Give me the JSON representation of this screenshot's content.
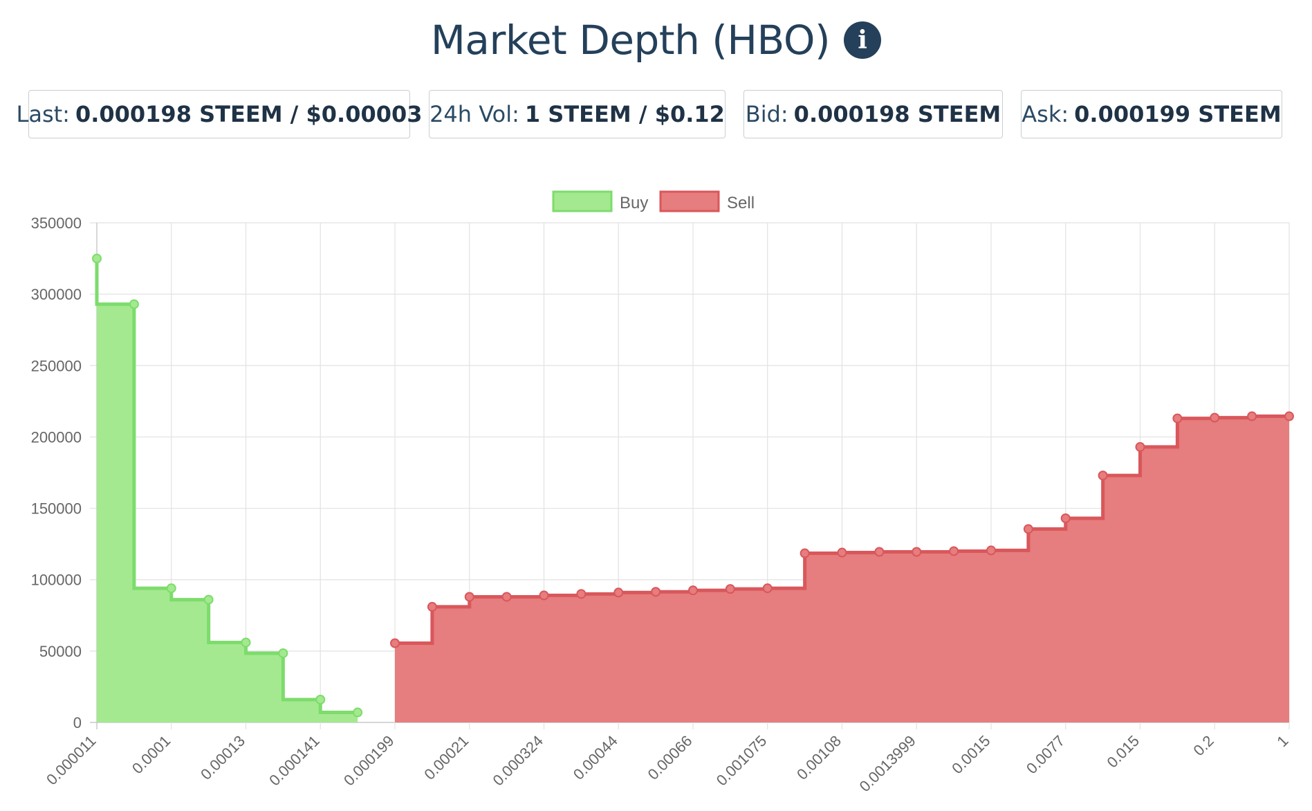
{
  "header": {
    "title": "Market Depth (HBO)",
    "info_icon": "info-icon"
  },
  "stats": [
    {
      "label": "Last:",
      "value": "0.000198 STEEM / $0.00003"
    },
    {
      "label": "24h Vol:",
      "value": "1 STEEM / $0.12"
    },
    {
      "label": "Bid:",
      "value": "0.000198 STEEM"
    },
    {
      "label": "Ask:",
      "value": "0.000199 STEEM"
    }
  ],
  "chart_data": {
    "type": "area",
    "stepped": true,
    "categories": [
      "0.000011",
      "0.0001",
      "0.00013",
      "0.000141",
      "0.000199",
      "0.00021",
      "0.000324",
      "0.00044",
      "0.00066",
      "0.001075",
      "0.00108",
      "0.0013999",
      "0.0015",
      "0.0077",
      "0.015",
      "0.2",
      "1"
    ],
    "ylim": [
      0,
      350000
    ],
    "yticks": [
      0,
      50000,
      100000,
      150000,
      200000,
      250000,
      300000,
      350000
    ],
    "grid": true,
    "legend_position": "top-center",
    "series": [
      {
        "name": "Buy",
        "color": "#7ddc6c",
        "fill": "#a4e98f",
        "points": [
          [
            0,
            325000
          ],
          [
            0.5,
            293000
          ],
          [
            1,
            94000
          ],
          [
            1.5,
            86000
          ],
          [
            2,
            56000
          ],
          [
            2.5,
            48500
          ],
          [
            3,
            16000
          ],
          [
            3.5,
            7000
          ]
        ]
      },
      {
        "name": "Sell",
        "color": "#d9575b",
        "fill": "#e67d7e",
        "points": [
          [
            4,
            55500
          ],
          [
            4.5,
            81000
          ],
          [
            5,
            88000
          ],
          [
            5.5,
            88000
          ],
          [
            6,
            89000
          ],
          [
            6.5,
            90000
          ],
          [
            7,
            91000
          ],
          [
            7.5,
            91500
          ],
          [
            8,
            92500
          ],
          [
            8.5,
            93500
          ],
          [
            9,
            94000
          ],
          [
            9.5,
            118500
          ],
          [
            10,
            119000
          ],
          [
            10.5,
            119500
          ],
          [
            11,
            119500
          ],
          [
            11.5,
            120000
          ],
          [
            12,
            120500
          ],
          [
            12.5,
            135500
          ],
          [
            13,
            143000
          ],
          [
            13.5,
            173000
          ],
          [
            14,
            193000
          ],
          [
            14.5,
            213000
          ],
          [
            15,
            213500
          ],
          [
            15.5,
            214500
          ],
          [
            16,
            214500
          ]
        ]
      }
    ]
  }
}
